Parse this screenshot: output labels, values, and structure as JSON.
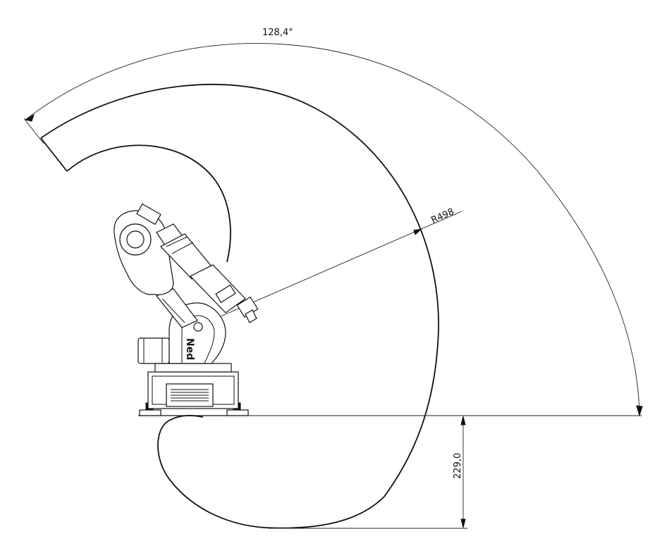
{
  "dimensions": {
    "sweep_angle": "128,4°",
    "reach_radius": "R498",
    "lower_depth": "229,0"
  },
  "robot": {
    "logo_text": "Ned"
  }
}
